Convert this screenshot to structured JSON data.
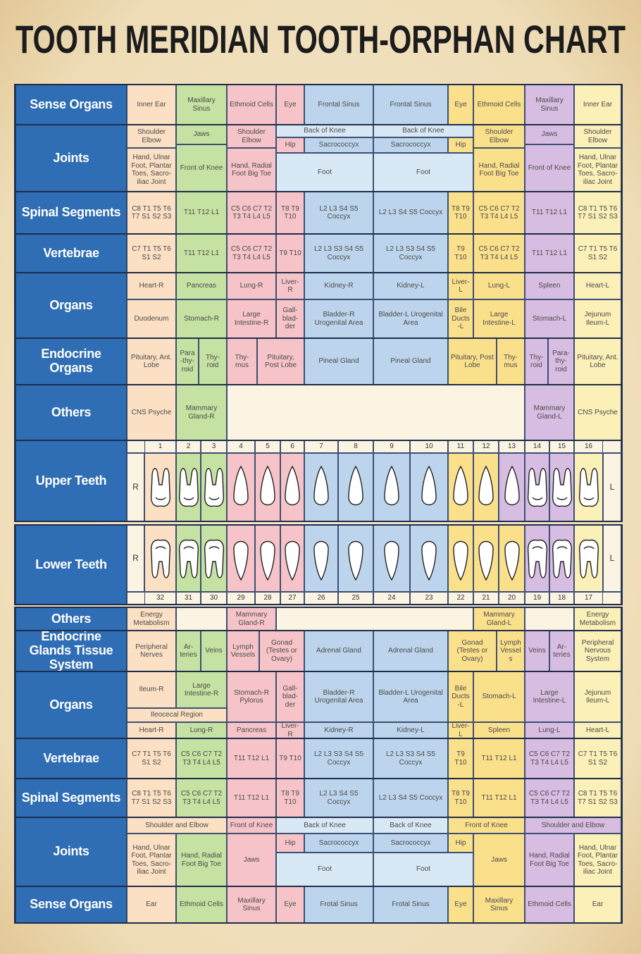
{
  "title": "TOOTH MERIDIAN TOOTH-ORPHAN CHART",
  "sections": [
    {
      "label": "Sense Organs",
      "cells": [
        "Inner Ear",
        "Maxillary Sinus",
        "Ethmoid Cells",
        "Eye",
        "Frontal Sinus",
        "Frontal Sinus",
        "Eye",
        "Ethmoid Cells",
        "Maxillary Sinus",
        "Inner Ear"
      ]
    },
    {
      "label": "Joints",
      "cells": [
        "Shoulder Elbow",
        "Jaws",
        "Shoulder Elbow",
        "Back of Knee",
        "Back of Knee",
        "Hip",
        "Sacrococcyx",
        "Sacrococcyx",
        "Hip",
        "Shoulder Elbow",
        "Jaws",
        "Shoulder Elbow",
        "Hand, Ulnar Foot, Plantar Toes, Sacro-iliac Joint",
        "Front of Knee",
        "Hand, Radial Foot Big Toe",
        "Foot",
        "Foot",
        "Hand, Radial Foot Big Toe",
        "Front of Knee",
        "Hand, Ulnar Foot, Plantar Toes, Sacro-iliac Joint"
      ]
    },
    {
      "label": "Spinal Segments",
      "cells": [
        "C8 T1 T5 T6 T7 S1 S2 S3",
        "T11 T12 L1",
        "C5 C6 C7 T2 T3 T4 L4 L5",
        "T8 T9 T10",
        "L2 L3 S4 S5 Coccyx",
        "L2 L3 S4 S5 Coccyx",
        "T8 T9 T10",
        "C5 C6 C7 T2 T3 T4 L4 L5",
        "T11 T12 L1",
        "C8 T1 T5 T6 T7 S1 S2 S3"
      ]
    },
    {
      "label": "Vertebrae",
      "cells": [
        "C7 T1 T5 T6 S1 S2",
        "T11 T12 L1",
        "C5 C6 C7 T2 T3 T4 L4 L5",
        "T9 T10",
        "L2 L3 S3 S4 S5 Coccyx",
        "L2 L3 S3 S4 S5 Coccyx",
        "T9 T10",
        "C5 C6 C7 T2 T3 T4 L4 L5",
        "T11 T12 L1",
        "C7 T1 T5 T6 S1 S2"
      ]
    },
    {
      "label": "Organs",
      "cells": [
        "Heart-R",
        "Pancreas",
        "Lung-R",
        "Liver-R",
        "Kidney-R",
        "Kidney-L",
        "Liver-L",
        "Lung-L",
        "Spleen",
        "Heart-L",
        "Duodenum",
        "Stomach-R",
        "Large Intestine-R",
        "Gall-blad-der",
        "Bladder-R Urogenital Area",
        "Bladder-L Urogenital Area",
        "Bile Ducts -L",
        "Large Intestine-L",
        "Stomach-L",
        "Jejunum Ileum-L"
      ]
    },
    {
      "label": "Endocrine Organs",
      "cells": [
        "Pituitary, Ant. Lobe",
        "Para-thy-roid",
        "Thy-roid",
        "Thy-mus",
        "Pituitary, Post Lobe",
        "Pineal Gland",
        "Pineal Gland",
        "Pituitary, Post Lobe",
        "Thy-mus",
        "Thy-roid",
        "Para-thy-roid",
        "Pituitary, Ant. Lobe"
      ]
    },
    {
      "label": "Others",
      "cells": [
        "CNS Psyche",
        "Mammary Gland-R",
        "Mammary Gland-L",
        "CNS Psyche"
      ]
    },
    {
      "label": "Upper Teeth",
      "side_labels": [
        "R",
        "L"
      ],
      "tooth_numbers": [
        1,
        2,
        3,
        4,
        5,
        6,
        7,
        8,
        9,
        10,
        11,
        12,
        13,
        14,
        15,
        16
      ]
    },
    {
      "label": "Lower Teeth",
      "side_labels": [
        "R",
        "L"
      ],
      "tooth_numbers": [
        32,
        31,
        30,
        29,
        28,
        27,
        26,
        25,
        24,
        23,
        22,
        21,
        20,
        19,
        18,
        17
      ]
    },
    {
      "label": "Others",
      "cells": [
        "Energy Metabolism",
        "Mammary Gland-R",
        "Mammary Gland-L",
        "Energy Metabolism"
      ]
    },
    {
      "label": "Endocrine Glands Tissue System",
      "cells": [
        "Peripheral Nerves",
        "Ar-teries",
        "Veins",
        "Lymph Vessels",
        "Gonad (Testes or Ovary)",
        "Adrenal Gland",
        "Adrenal Gland",
        "Gonad (Testes or Ovary)",
        "Lymph Vessels",
        "Veins",
        "Ar-teries",
        "Peripheral Nervous System"
      ]
    },
    {
      "label": "Organs",
      "cells": [
        "Ileum-R",
        "Large Intestine-R",
        "Ileocecal Region",
        "Stomach-R Pylorus",
        "Gall-blad-der",
        "Bladder-R Urogenital Area",
        "Bladder-L Urogenital Area",
        "Bile Ducts -L",
        "Stomach-L",
        "Large Intestine-L",
        "Jejunum Ileum-L",
        "Heart-R",
        "Lung-R",
        "Pancreas",
        "Liver-R",
        "Kidney-R",
        "Kidney-L",
        "Liver-L",
        "Spleen",
        "Lung-L",
        "Heart-L"
      ]
    },
    {
      "label": "Vertebrae",
      "cells": [
        "C7 T1 T5 T6 S1 S2",
        "C5 C6 C7 T2 T3 T4 L4 L5",
        "T11 T12 L1",
        "T9 T10",
        "L2 L3 S3 S4 S5 Coccyx",
        "L2 L3 S3 S4 S5 Coccyx",
        "T9 T10",
        "T11 T12 L1",
        "C5 C6 C7 T2 T3 T4 L4 L5",
        "C7 T1 T5 T6 S1 S2"
      ]
    },
    {
      "label": "Spinal Segments",
      "cells": [
        "C8 T1 T5 T6 T7 S1 S2 S3",
        "C5 C6 C7 T2 T3 T4 L4 L5",
        "T11 T12 L1",
        "T8 T9 T10",
        "L2 L3 S4 S5 Coccyx",
        "L2 L3 S4 S5 Coccyx",
        "T8 T9 T10",
        "T11 T12 L1",
        "C5 C6 C7 T2 T3 T4 L4 L5",
        "C8 T1 T5 T6 T7 S1 S2 S3"
      ]
    },
    {
      "label": "Joints",
      "cells": [
        "Shoulder and Elbow",
        "Front of Knee",
        "Back of Knee",
        "Back of Knee",
        "Front of Knee",
        "Shoulder and Elbow",
        "Hip",
        "Sacrococcyx",
        "Sacrococcyx",
        "Hip",
        "Hand, Ulnar Foot, Plantar Toes, Sacro-iliac Joint",
        "Hand, Radial Foot Big Toe",
        "Jaws",
        "Foot",
        "Foot",
        "Jaws",
        "Hand, Radial Foot Big Toe",
        "Hand, Ulnar Foot, Plantar Toes, Sacro-iliac Joint"
      ]
    },
    {
      "label": "Sense Organs",
      "cells": [
        "Ear",
        "Ethmoid Cells",
        "Maxillary Sinus",
        "Eye",
        "Frotal Sinus",
        "Frotal Sinus",
        "Eye",
        "Maxillary Sinus",
        "Ethmoid Cells",
        "Ear"
      ]
    }
  ]
}
